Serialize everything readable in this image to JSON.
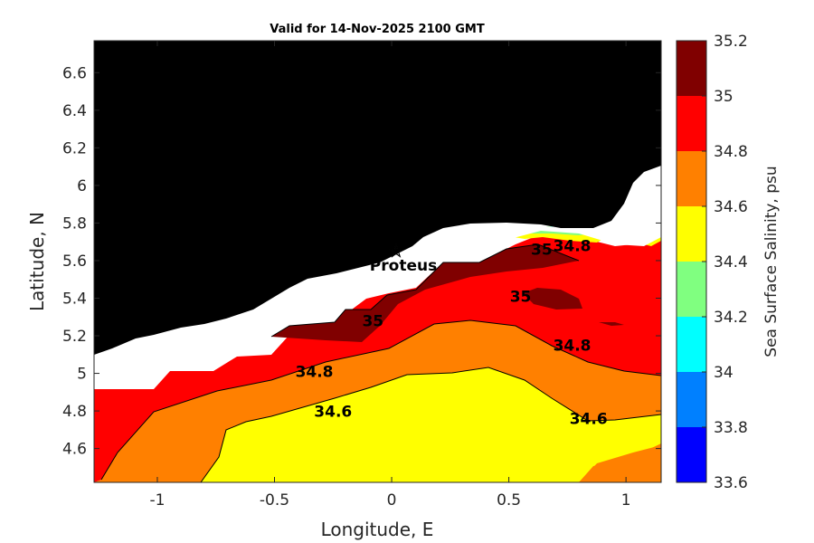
{
  "chart_data": {
    "type": "contour",
    "title": "Valid for 14-Nov-2025 2100 GMT",
    "xlabel": "Longitude, E",
    "ylabel": "Latitude, N",
    "xlim": [
      -1.27,
      1.15
    ],
    "ylim": [
      4.42,
      6.77
    ],
    "x_ticks": [
      "-1",
      "-0.5",
      "0",
      "0.5",
      "1"
    ],
    "x_tick_values": [
      -1,
      -0.5,
      0,
      0.5,
      1
    ],
    "y_ticks": [
      "6.6",
      "6.4",
      "6.2",
      "6",
      "5.8",
      "5.6",
      "5.4",
      "5.2",
      "5",
      "4.8",
      "4.6"
    ],
    "y_tick_values": [
      6.6,
      6.4,
      6.2,
      6.0,
      5.8,
      5.6,
      5.4,
      5.2,
      5.0,
      4.8,
      4.6
    ],
    "colorbar": {
      "label": "Sea Surface Salinity, psu",
      "levels": [
        33.6,
        33.8,
        34.0,
        34.2,
        34.4,
        34.6,
        34.8,
        35.0,
        35.2
      ],
      "tick_labels": [
        "33.6",
        "33.8",
        "34",
        "34.2",
        "34.4",
        "34.6",
        "34.8",
        "35",
        "35.2"
      ],
      "colors": [
        "#0000ff",
        "#0080ff",
        "#00ffff",
        "#80ff80",
        "#ffff00",
        "#ff8000",
        "#ff0000",
        "#800000"
      ]
    },
    "contour_labels": [
      {
        "text": "34.8",
        "lon": -0.33,
        "lat": 4.98
      },
      {
        "text": "34.6",
        "lon": -0.25,
        "lat": 4.77
      },
      {
        "text": "35",
        "lon": -0.08,
        "lat": 5.25
      },
      {
        "text": "35",
        "lon": 0.64,
        "lat": 5.63
      },
      {
        "text": "34.8",
        "lon": 0.77,
        "lat": 5.65
      },
      {
        "text": "35",
        "lon": 0.55,
        "lat": 5.38
      },
      {
        "text": "34.8",
        "lon": 0.77,
        "lat": 5.12
      },
      {
        "text": "34.6",
        "lon": 0.84,
        "lat": 4.73
      }
    ],
    "station": {
      "name": "Proteus",
      "lon": 0.02,
      "lat": 5.63
    },
    "land_color": "#000000",
    "nodata_color": "#ffffff"
  }
}
